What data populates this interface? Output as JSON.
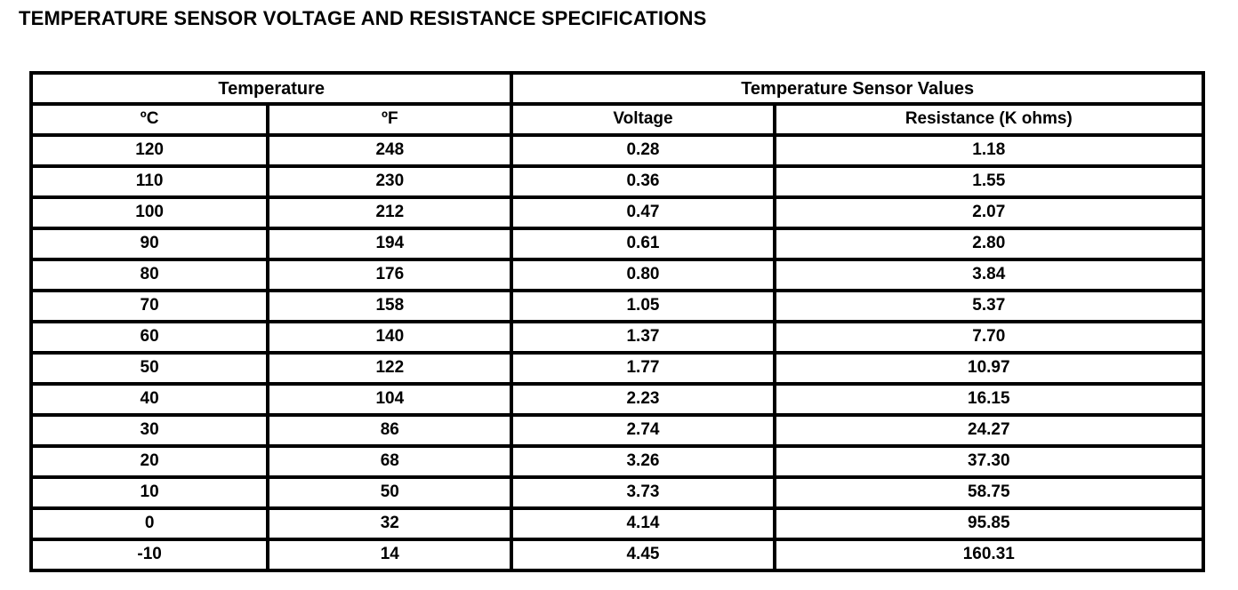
{
  "title": "TEMPERATURE SENSOR VOLTAGE AND RESISTANCE SPECIFICATIONS",
  "table": {
    "group_headers": [
      {
        "label": "Temperature",
        "colspan": 2
      },
      {
        "label": "Temperature Sensor Values",
        "colspan": 2
      }
    ],
    "columns": [
      "ºC",
      "ºF",
      "Voltage",
      "Resistance (K ohms)"
    ],
    "rows": [
      [
        "120",
        "248",
        "0.28",
        "1.18"
      ],
      [
        "110",
        "230",
        "0.36",
        "1.55"
      ],
      [
        "100",
        "212",
        "0.47",
        "2.07"
      ],
      [
        "90",
        "194",
        "0.61",
        "2.80"
      ],
      [
        "80",
        "176",
        "0.80",
        "3.84"
      ],
      [
        "70",
        "158",
        "1.05",
        "5.37"
      ],
      [
        "60",
        "140",
        "1.37",
        "7.70"
      ],
      [
        "50",
        "122",
        "1.77",
        "10.97"
      ],
      [
        "40",
        "104",
        "2.23",
        "16.15"
      ],
      [
        "30",
        "86",
        "2.74",
        "24.27"
      ],
      [
        "20",
        "68",
        "3.26",
        "37.30"
      ],
      [
        "10",
        "50",
        "3.73",
        "58.75"
      ],
      [
        "0",
        "32",
        "4.14",
        "95.85"
      ],
      [
        "-10",
        "14",
        "4.45",
        "160.31"
      ]
    ],
    "colors": {
      "border": "#000000",
      "text": "#000000",
      "background": "#ffffff"
    }
  }
}
